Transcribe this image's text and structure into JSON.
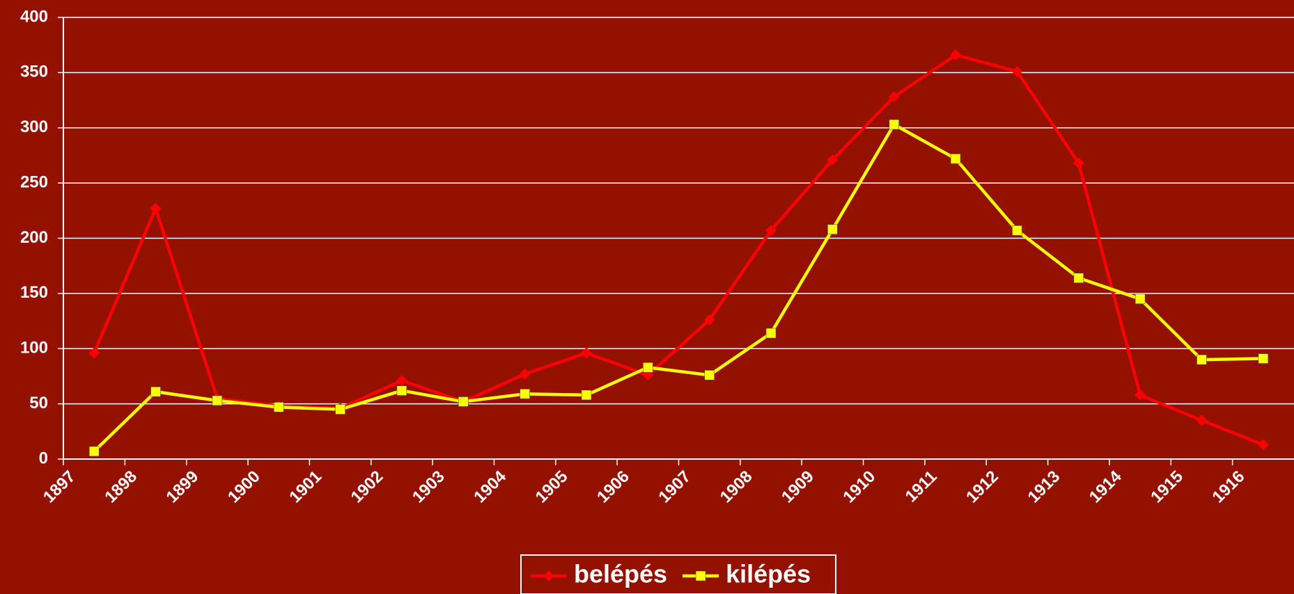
{
  "chart_data": {
    "type": "line",
    "categories": [
      "1897",
      "1898",
      "1899",
      "1900",
      "1901",
      "1902",
      "1903",
      "1904",
      "1905",
      "1906",
      "1907",
      "1908",
      "1909",
      "1910",
      "1911",
      "1912",
      "1913",
      "1914",
      "1915",
      "1916"
    ],
    "series": [
      {
        "name": "belépés",
        "color": "#ff0000",
        "marker": "diamond",
        "values": [
          96,
          227,
          55,
          48,
          46,
          71,
          52,
          77,
          96,
          76,
          126,
          207,
          271,
          328,
          366,
          351,
          268,
          58,
          35,
          13
        ]
      },
      {
        "name": "kilépés",
        "color": "#ffff00",
        "marker": "square",
        "values": [
          7,
          61,
          53,
          47,
          45,
          62,
          52,
          59,
          58,
          83,
          76,
          114,
          208,
          303,
          272,
          207,
          164,
          145,
          90,
          91
        ]
      }
    ],
    "ylim": [
      0,
      400
    ],
    "yticks": [
      0,
      50,
      100,
      150,
      200,
      250,
      300,
      350,
      400
    ],
    "grid": true,
    "legend": "bottom",
    "background": "#941100"
  }
}
